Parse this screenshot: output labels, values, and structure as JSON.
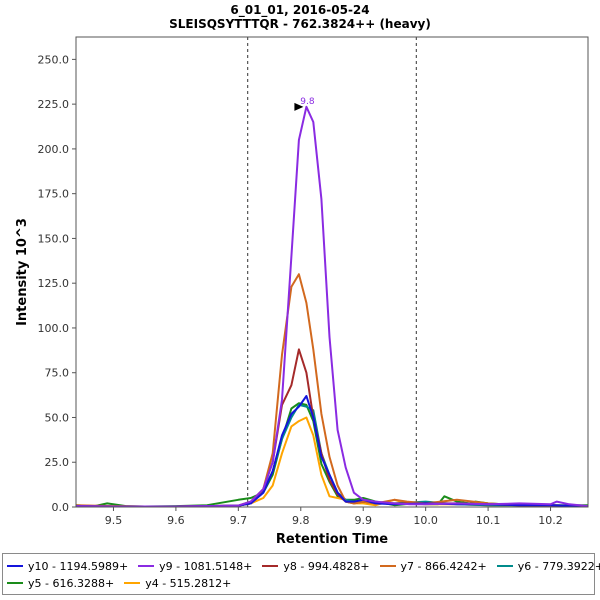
{
  "chart_data": {
    "type": "line",
    "title": "6_01_01, 2016-05-24",
    "subtitle": "SLEISQSYTTTQR - 762.3824++ (heavy)",
    "xlabel": "Retention Time",
    "ylabel": "Intensity 10^3",
    "xlim": [
      9.44,
      10.26
    ],
    "ylim": [
      0,
      262.5
    ],
    "xticks": [
      "9.5",
      "9.6",
      "9.7",
      "9.8",
      "9.9",
      "10.0",
      "10.1",
      "10.2"
    ],
    "yticks": [
      "0.0",
      "25.0",
      "50.0",
      "75.0",
      "100.0",
      "125.0",
      "150.0",
      "175.0",
      "200.0",
      "225.0",
      "250.0"
    ],
    "boundaries": [
      9.715,
      9.985
    ],
    "peak_annotation": {
      "label": "9.8",
      "x": 9.809,
      "y": 223.5,
      "color": "#8a2be2"
    },
    "legend_position": "bottom",
    "series": [
      {
        "name": "y10 - 1194.5989+",
        "color": "#1414dc",
        "x": [
          9.44,
          9.5,
          9.55,
          9.6,
          9.65,
          9.7,
          9.72,
          9.74,
          9.755,
          9.77,
          9.785,
          9.797,
          9.809,
          9.82,
          9.833,
          9.846,
          9.859,
          9.872,
          9.885,
          9.9,
          9.92,
          9.95,
          10.0,
          10.05,
          10.1,
          10.15,
          10.2,
          10.26
        ],
        "y": [
          0.5,
          0.3,
          0.3,
          0.3,
          0.5,
          0.8,
          2,
          8,
          20,
          40,
          52,
          56,
          62,
          50,
          28,
          18,
          8,
          3,
          3,
          4,
          2,
          1.5,
          2,
          1.5,
          1.5,
          1,
          1,
          0.5
        ]
      },
      {
        "name": "y9 - 1081.5148+",
        "color": "#8a2be2",
        "x": [
          9.44,
          9.5,
          9.55,
          9.6,
          9.65,
          9.7,
          9.72,
          9.74,
          9.755,
          9.77,
          9.785,
          9.797,
          9.809,
          9.82,
          9.833,
          9.846,
          9.859,
          9.872,
          9.885,
          9.9,
          9.92,
          9.95,
          9.975,
          10.0,
          10.05,
          10.1,
          10.15,
          10.2,
          10.21,
          10.23,
          10.26
        ],
        "y": [
          0.5,
          0.3,
          0.3,
          0.3,
          0.5,
          0.8,
          3,
          10,
          25,
          60,
          140,
          205,
          223.5,
          215,
          172,
          95,
          43,
          22,
          8,
          4,
          3,
          2,
          1.5,
          1.5,
          2,
          1.5,
          2,
          1.5,
          3,
          1.5,
          0.5
        ]
      },
      {
        "name": "y8 - 994.4828+",
        "color": "#a52a2a",
        "x": [
          9.44,
          9.5,
          9.55,
          9.6,
          9.65,
          9.7,
          9.72,
          9.74,
          9.755,
          9.77,
          9.785,
          9.797,
          9.809,
          9.82,
          9.833,
          9.846,
          9.859,
          9.872,
          9.885,
          9.9,
          9.92,
          9.95,
          10.0,
          10.05,
          10.1,
          10.15,
          10.2,
          10.26
        ],
        "y": [
          0.5,
          0.3,
          0.3,
          0.3,
          0.5,
          0.8,
          2,
          10,
          25,
          57,
          68,
          88,
          75,
          50,
          30,
          15,
          7,
          3,
          2,
          3,
          2,
          2,
          2,
          2,
          1.5,
          1,
          1,
          0.5
        ]
      },
      {
        "name": "y7 - 866.4242+",
        "color": "#d2691e",
        "x": [
          9.44,
          9.5,
          9.55,
          9.6,
          9.65,
          9.7,
          9.72,
          9.74,
          9.755,
          9.77,
          9.785,
          9.797,
          9.809,
          9.82,
          9.833,
          9.846,
          9.859,
          9.872,
          9.885,
          9.9,
          9.92,
          9.95,
          9.97,
          10.0,
          10.05,
          10.1,
          10.15,
          10.2,
          10.26
        ],
        "y": [
          1,
          0.5,
          0.3,
          0.3,
          0.5,
          0.8,
          3,
          10,
          30,
          85,
          123,
          130,
          114,
          88,
          52,
          28,
          12,
          3,
          2,
          3,
          2,
          4,
          3,
          2,
          4,
          2,
          1,
          1,
          0.5
        ]
      },
      {
        "name": "y6 - 779.3922+",
        "color": "#008b8b",
        "x": [
          9.44,
          9.5,
          9.55,
          9.6,
          9.65,
          9.7,
          9.72,
          9.74,
          9.755,
          9.77,
          9.785,
          9.797,
          9.809,
          9.82,
          9.833,
          9.846,
          9.859,
          9.872,
          9.885,
          9.9,
          9.92,
          9.95,
          10.0,
          10.05,
          10.1,
          10.15,
          10.2,
          10.26
        ],
        "y": [
          0.5,
          0.3,
          0.3,
          0.3,
          0.5,
          0.8,
          2,
          9,
          20,
          38,
          50,
          57,
          56,
          54,
          30,
          18,
          8,
          4,
          3,
          3,
          2,
          2,
          3,
          1.5,
          1,
          1,
          1,
          0.5
        ]
      },
      {
        "name": "y5 - 616.3288+",
        "color": "#1a8c1a",
        "x": [
          9.44,
          9.47,
          9.49,
          9.52,
          9.55,
          9.6,
          9.65,
          9.7,
          9.72,
          9.74,
          9.755,
          9.77,
          9.785,
          9.797,
          9.809,
          9.82,
          9.833,
          9.846,
          9.859,
          9.872,
          9.885,
          9.9,
          9.92,
          9.95,
          9.98,
          10.0,
          10.02,
          10.03,
          10.05,
          10.07,
          10.08,
          10.1,
          10.15,
          10.2,
          10.26
        ],
        "y": [
          1,
          0.5,
          2,
          0.5,
          0.3,
          0.5,
          1,
          4,
          5,
          8,
          18,
          38,
          55,
          58,
          57,
          48,
          24,
          14,
          6,
          4,
          4,
          5,
          3,
          1,
          2,
          1.5,
          1.5,
          6,
          3,
          2,
          3,
          2,
          1,
          1,
          1
        ]
      },
      {
        "name": "y4 - 515.2812+",
        "color": "#ffa500",
        "x": [
          9.44,
          9.5,
          9.55,
          9.6,
          9.65,
          9.7,
          9.72,
          9.74,
          9.755,
          9.77,
          9.785,
          9.797,
          9.809,
          9.82,
          9.833,
          9.846,
          9.859,
          9.872,
          9.885,
          9.9,
          9.92,
          9.95,
          9.97,
          10.0,
          10.05,
          10.1,
          10.15,
          10.2,
          10.26
        ],
        "y": [
          0.5,
          0.3,
          0.3,
          0.3,
          0.5,
          0.8,
          2,
          5,
          12,
          30,
          45,
          48,
          50,
          40,
          18,
          6,
          5,
          4,
          2,
          2,
          1,
          4,
          2,
          1.5,
          1.5,
          1,
          1,
          0.5,
          0.5
        ]
      }
    ]
  }
}
